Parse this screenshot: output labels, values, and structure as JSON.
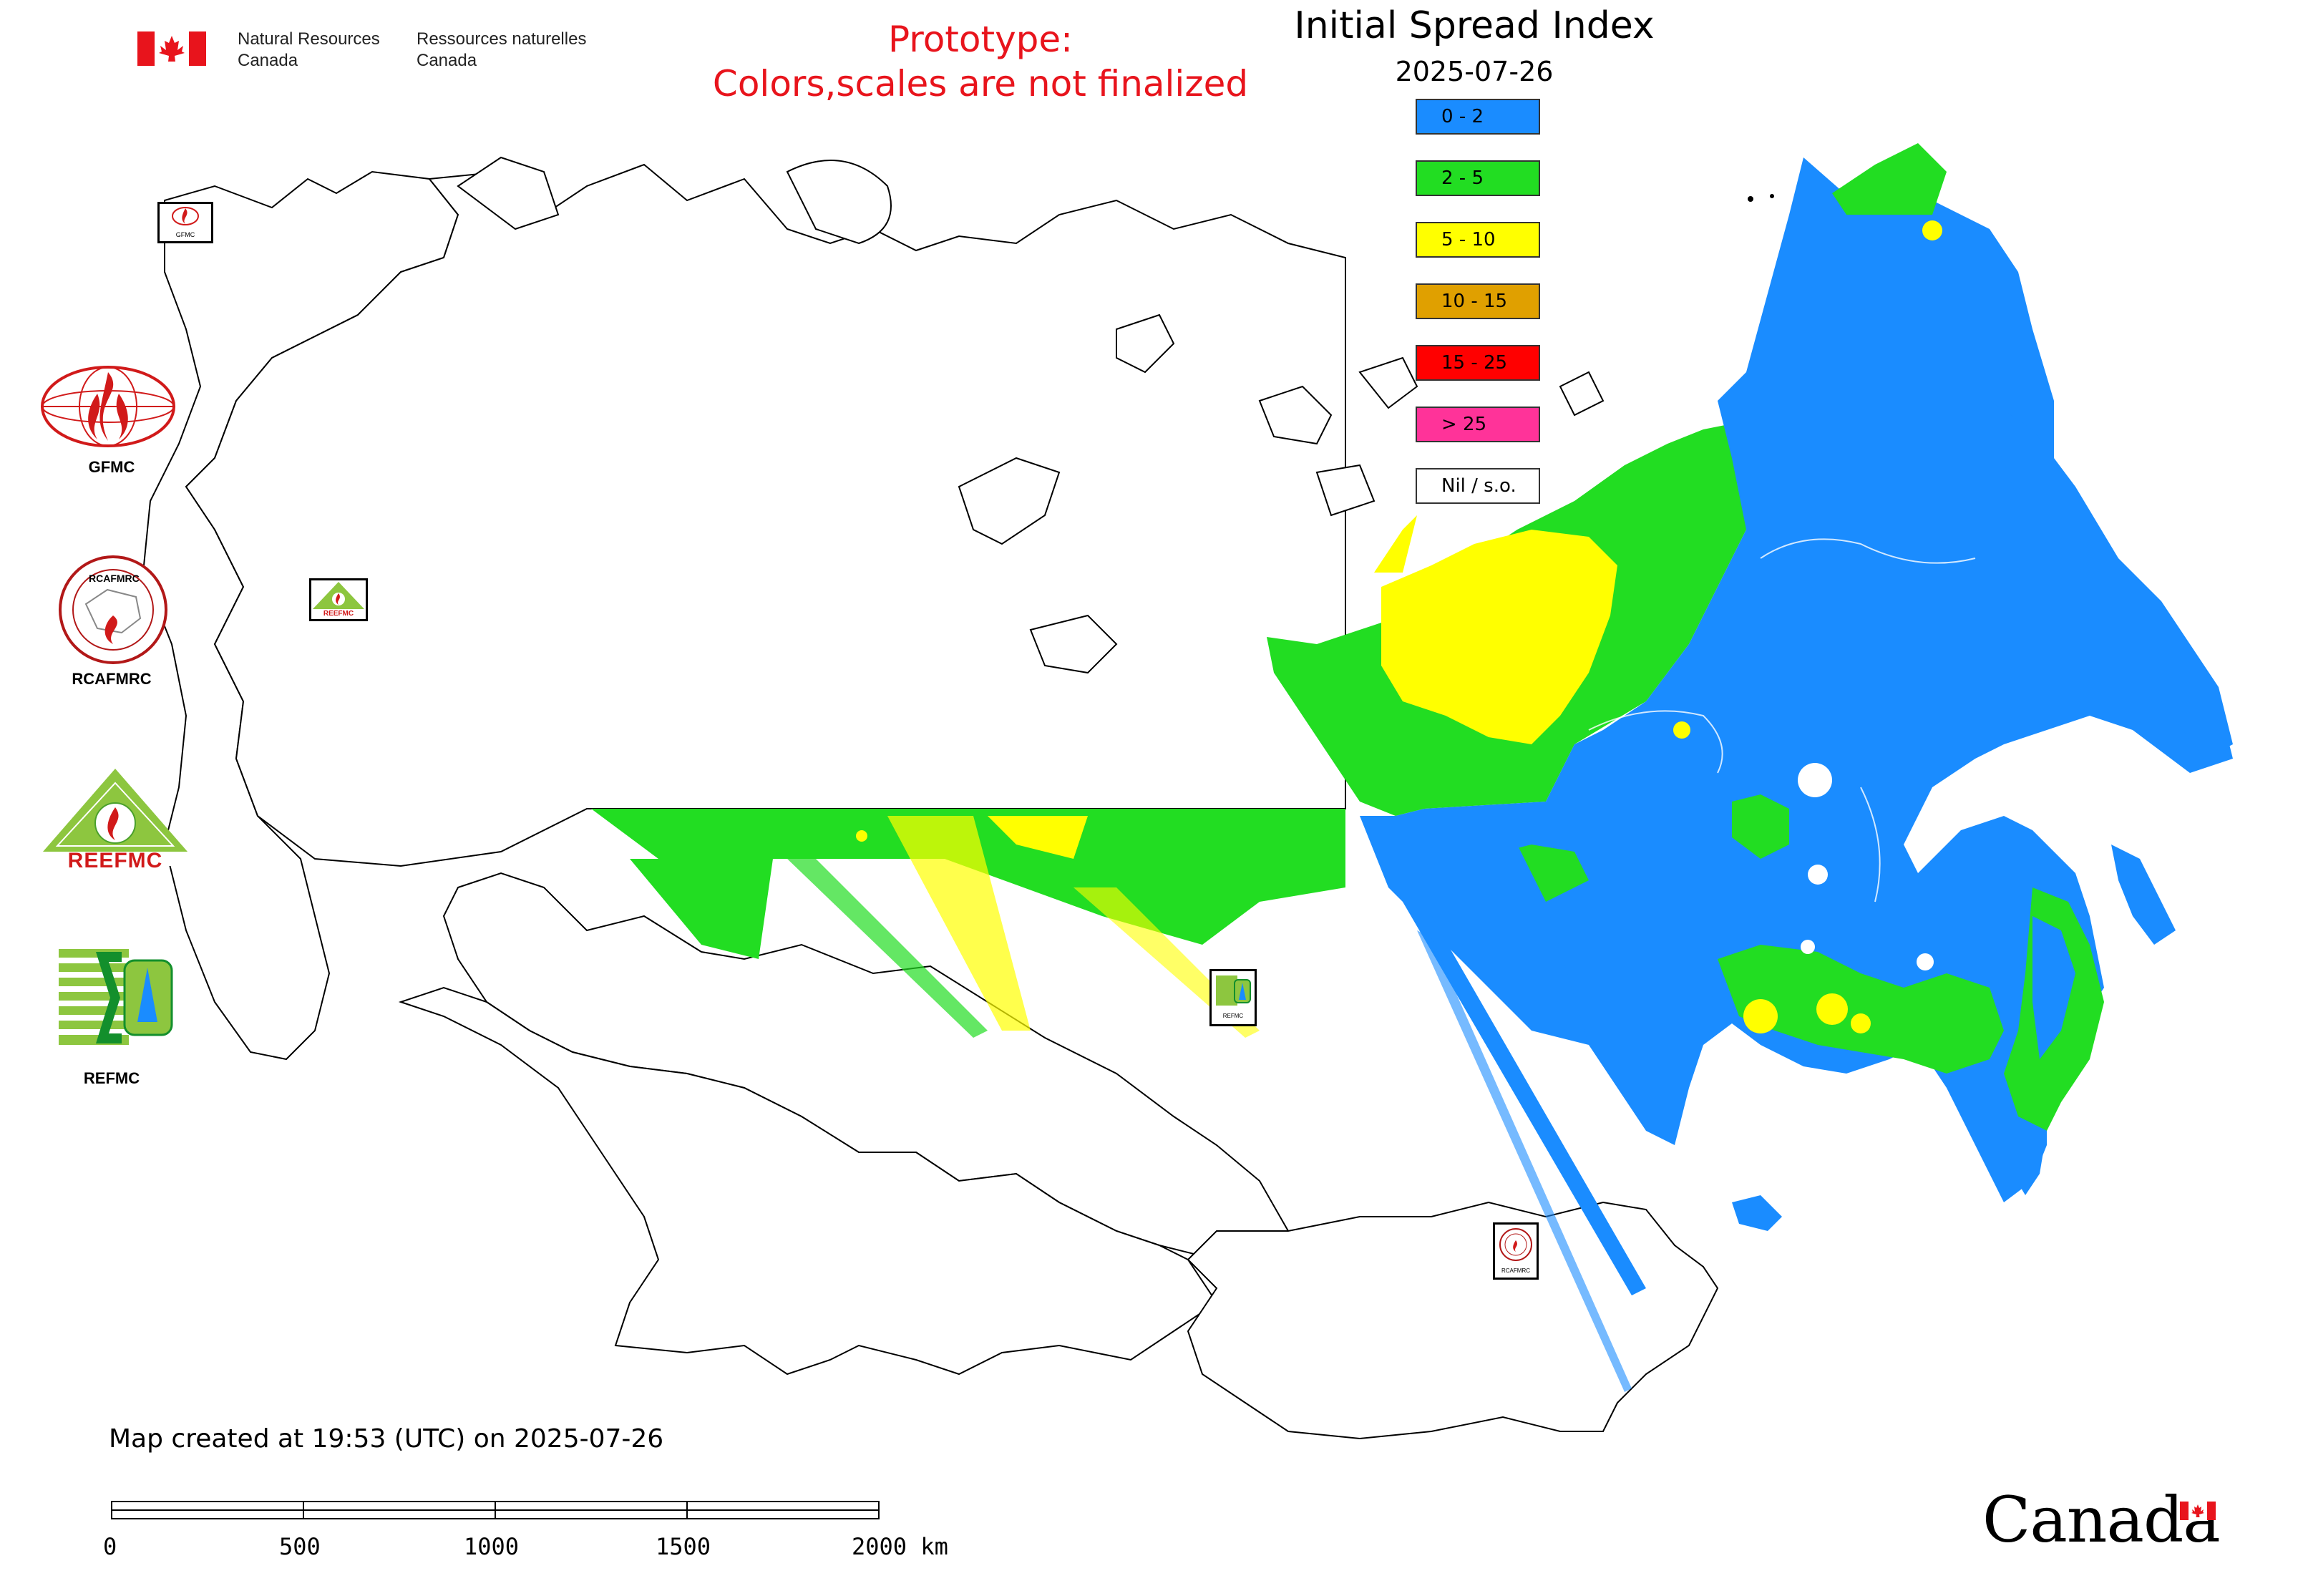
{
  "header": {
    "agency_en_line1": "Natural Resources",
    "agency_en_line2": "Canada",
    "agency_fr_line1": "Ressources naturelles",
    "agency_fr_line2": "Canada",
    "prototype_line1": "Prototype:",
    "prototype_line2": "Colors,scales are not finalized"
  },
  "map": {
    "title": "Initial Spread Index",
    "date": "2025-07-26",
    "legend": [
      {
        "label": "0 - 2",
        "color": "#1a8cff"
      },
      {
        "label": "2 - 5",
        "color": "#22dd22"
      },
      {
        "label": "5 - 10",
        "color": "#ffff00"
      },
      {
        "label": "10 - 15",
        "color": "#e0a000"
      },
      {
        "label": "15 - 25",
        "color": "#ff0000"
      },
      {
        "label": "> 25",
        "color": "#ff3399"
      },
      {
        "label": "Nil / s.o.",
        "color": "#ffffff"
      }
    ]
  },
  "logos": {
    "gfmc": "GFMC",
    "rcafmrc": "RCAFMRC",
    "rcafmrc_ring_text": "RCAFMRC",
    "reefmc": "REEFMC",
    "refmc": "REFMC",
    "small_gfmc": "GFMC",
    "small_reefmc": "REEFMC",
    "small_refmc": "REFMC",
    "small_rcafmrc": "RCAFMRC"
  },
  "footer": {
    "created": "Map created at 19:53 (UTC) on 2025-07-26",
    "scale_ticks": [
      "0",
      "500",
      "1000",
      "1500",
      "2000 km"
    ],
    "wordmark": "Canada"
  }
}
